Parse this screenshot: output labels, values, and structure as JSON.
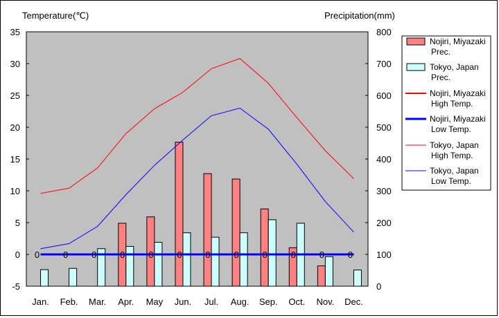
{
  "chart_data": {
    "type": "bar",
    "left_axis_title": "Temperature(℃)",
    "right_axis_title": "Precipitation(mm)",
    "categories": [
      "Jan.",
      "Feb.",
      "Mar.",
      "Apr.",
      "May",
      "Jun.",
      "Jul.",
      "Aug.",
      "Sep.",
      "Oct.",
      "Nov.",
      "Dec."
    ],
    "ylim_temperature": [
      -5,
      35
    ],
    "yticks_temperature": [
      -5,
      0,
      5,
      10,
      15,
      20,
      25,
      30,
      35
    ],
    "ylim_precipitation": [
      0,
      800
    ],
    "yticks_precipitation": [
      0,
      100,
      200,
      300,
      400,
      500,
      600,
      700,
      800
    ],
    "grid": false,
    "legend_position": "right",
    "colors": {
      "plot_background": "#c0c0c0",
      "nojiri_prec": "#ff8080",
      "tokyo_prec": "#ccffff",
      "nojiri_high": "#ff0000",
      "nojiri_low": "#0000ff",
      "tokyo_high": "#ff0000",
      "tokyo_low": "#0000ff"
    },
    "series": [
      {
        "name": "Nojiri, Miyazaki Prec.",
        "kind": "bar",
        "axis": "precipitation",
        "color": "#ff8080",
        "values": [
          0,
          0,
          0,
          198,
          218,
          453,
          354,
          337,
          243,
          121,
          64,
          0
        ]
      },
      {
        "name": "Tokyo, Japan Prec.",
        "kind": "bar",
        "axis": "precipitation",
        "color": "#ccffff",
        "values": [
          52,
          56,
          118,
          125,
          138,
          168,
          154,
          168,
          209,
          198,
          93,
          51
        ]
      },
      {
        "name": "Nojiri, Miyazaki High Temp.",
        "kind": "line",
        "axis": "temperature",
        "color": "#ff0000",
        "width": 2,
        "values": [
          0,
          0,
          0,
          0,
          0,
          0,
          0,
          0,
          0,
          0,
          0,
          0
        ]
      },
      {
        "name": "Nojiri, Miyazaki Low Temp.",
        "kind": "line",
        "axis": "temperature",
        "color": "#0000ff",
        "width": 3,
        "values": [
          0,
          0,
          0,
          0,
          0,
          0,
          0,
          0,
          0,
          0,
          0,
          0
        ]
      },
      {
        "name": "Tokyo, Japan High Temp.",
        "kind": "line",
        "axis": "temperature",
        "color": "#ff0000",
        "width": 1,
        "values": [
          9.6,
          10.4,
          13.6,
          19.0,
          22.9,
          25.5,
          29.2,
          30.8,
          26.9,
          21.5,
          16.3,
          11.9
        ]
      },
      {
        "name": "Tokyo, Japan Low Temp.",
        "kind": "line",
        "axis": "temperature",
        "color": "#0000ff",
        "width": 1,
        "values": [
          0.9,
          1.7,
          4.4,
          9.4,
          14.0,
          18.0,
          21.8,
          23.0,
          19.7,
          14.2,
          8.3,
          3.5
        ]
      }
    ],
    "zero_value_labels": [
      "0",
      "0",
      "0",
      "0",
      "0",
      "0",
      "0",
      "0",
      "0",
      "0",
      "0",
      "0"
    ]
  }
}
